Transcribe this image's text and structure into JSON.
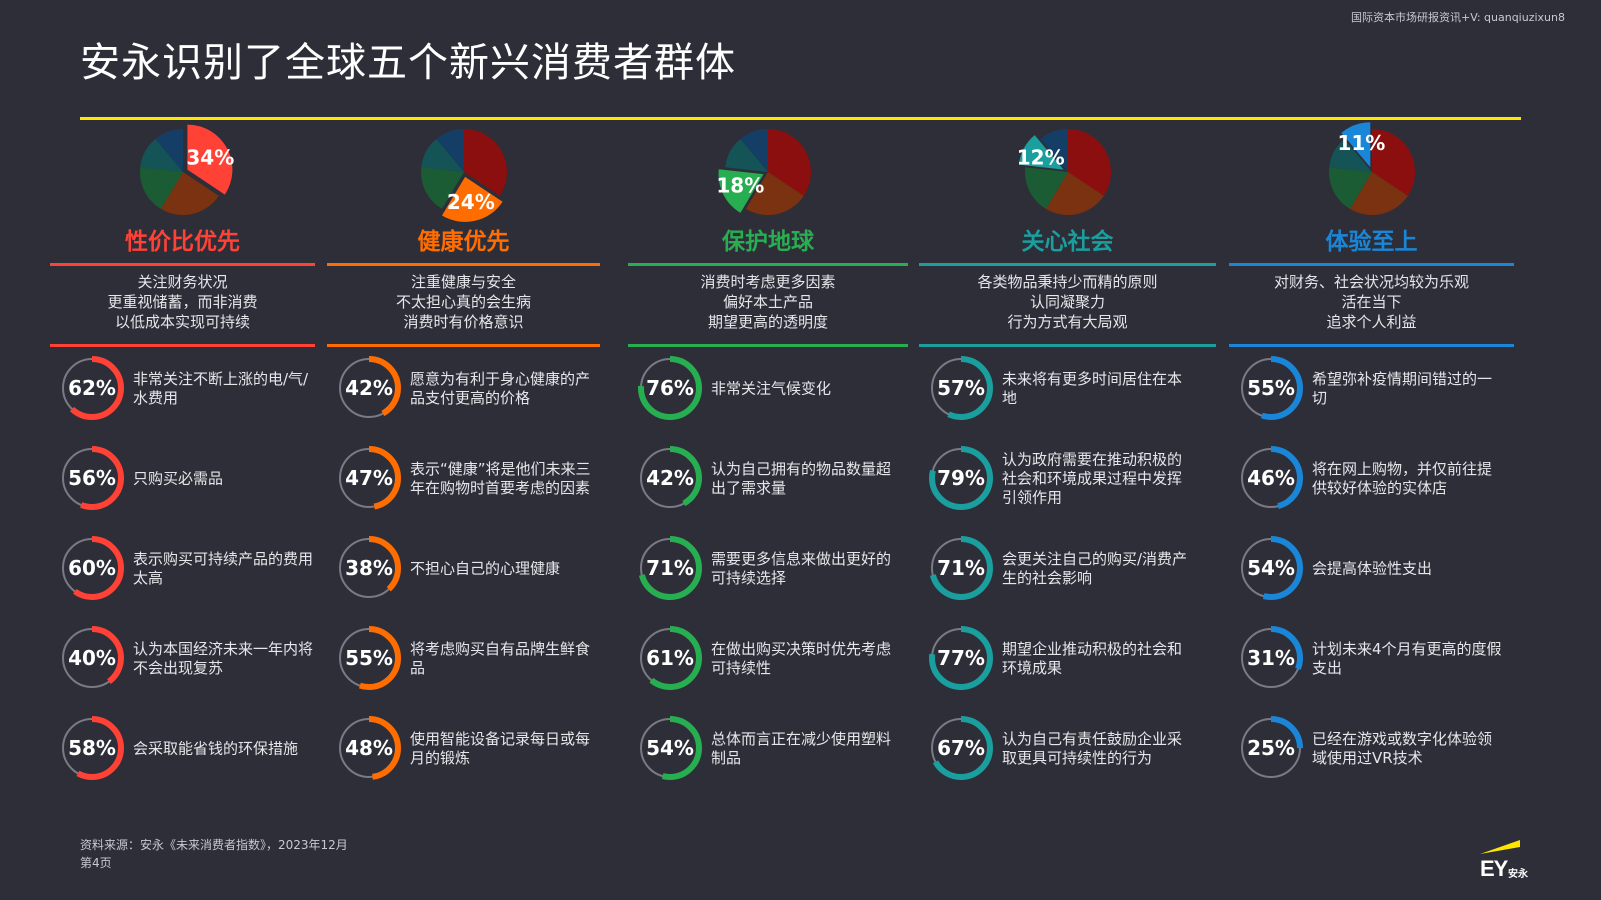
{
  "header": {
    "title": "安永识别了全球五个新兴消费者群体",
    "watermark": "国际资本市场研报资讯+V: quanqiuzixun8",
    "accent_line_color": "#ffe600"
  },
  "footer": {
    "source": "资料来源：安永《未来消费者指数》，2023年12月",
    "page": "第4页"
  },
  "logo": {
    "text": "EY",
    "cn": "安永"
  },
  "chart_data": {
    "type": "pie",
    "segment_colors": {
      "price_first": "#ff4136",
      "health_first": "#ff6d00",
      "protect_planet": "#27ae50",
      "care_society": "#1a9e9e",
      "experience_first": "#1a86d8"
    },
    "groups": [
      {
        "key": "price_first",
        "name": "性价比优先",
        "share": 34,
        "share_label": "34%",
        "color": "#ff4136",
        "description": [
          "关注财务状况",
          "更重视储蓄，而非消费",
          "以低成本实现可持续"
        ],
        "stats": [
          {
            "value": 62,
            "label": "62%",
            "text": "非常关注不断上涨的电/气/水费用"
          },
          {
            "value": 56,
            "label": "56%",
            "text": "只购买必需品"
          },
          {
            "value": 60,
            "label": "60%",
            "text": "表示购买可持续产品的费用太高"
          },
          {
            "value": 40,
            "label": "40%",
            "text": "认为本国经济未来一年内将不会出现复苏"
          },
          {
            "value": 58,
            "label": "58%",
            "text": "会采取能省钱的环保措施"
          }
        ]
      },
      {
        "key": "health_first",
        "name": "健康优先",
        "share": 24,
        "share_label": "24%",
        "color": "#ff6d00",
        "description": [
          "注重健康与安全",
          "不太担心真的会生病",
          "消费时有价格意识"
        ],
        "stats": [
          {
            "value": 42,
            "label": "42%",
            "text": "愿意为有利于身心健康的产品支付更高的价格"
          },
          {
            "value": 47,
            "label": "47%",
            "text": "表示“健康”将是他们未来三年在购物时首要考虑的因素"
          },
          {
            "value": 38,
            "label": "38%",
            "text": "不担心自己的心理健康"
          },
          {
            "value": 55,
            "label": "55%",
            "text": "将考虑购买自有品牌生鲜食品"
          },
          {
            "value": 48,
            "label": "48%",
            "text": "使用智能设备记录每日或每月的锻炼"
          }
        ]
      },
      {
        "key": "protect_planet",
        "name": "保护地球",
        "share": 18,
        "share_label": "18%",
        "color": "#27ae50",
        "description": [
          "消费时考虑更多因素",
          "偏好本土产品",
          "期望更高的透明度"
        ],
        "stats": [
          {
            "value": 76,
            "label": "76%",
            "text": "非常关注气候变化"
          },
          {
            "value": 42,
            "label": "42%",
            "text": "认为自己拥有的物品数量超出了需求量"
          },
          {
            "value": 71,
            "label": "71%",
            "text": "需要更多信息来做出更好的可持续选择"
          },
          {
            "value": 61,
            "label": "61%",
            "text": "在做出购买决策时优先考虑可持续性"
          },
          {
            "value": 54,
            "label": "54%",
            "text": "总体而言正在减少使用塑料制品"
          }
        ]
      },
      {
        "key": "care_society",
        "name": "关心社会",
        "share": 12,
        "share_label": "12%",
        "color": "#1a9e9e",
        "description": [
          "各类物品秉持少而精的原则",
          "认同凝聚力",
          "行为方式有大局观"
        ],
        "stats": [
          {
            "value": 57,
            "label": "57%",
            "text": "未来将有更多时间居住在本地"
          },
          {
            "value": 79,
            "label": "79%",
            "text": "认为政府需要在推动积极的社会和环境成果过程中发挥引领作用"
          },
          {
            "value": 71,
            "label": "71%",
            "text": "会更关注自己的购买/消费产生的社会影响"
          },
          {
            "value": 77,
            "label": "77%",
            "text": "期望企业推动积极的社会和环境成果"
          },
          {
            "value": 67,
            "label": "67%",
            "text": "认为自己有责任鼓励企业采取更具可持续性的行为"
          }
        ]
      },
      {
        "key": "experience_first",
        "name": "体验至上",
        "share": 11,
        "share_label": "11%",
        "color": "#1a86d8",
        "description": [
          "对财务、社会状况均较为乐观",
          "活在当下",
          "追求个人利益"
        ],
        "stats": [
          {
            "value": 55,
            "label": "55%",
            "text": "希望弥补疫情期间错过的一切"
          },
          {
            "value": 46,
            "label": "46%",
            "text": "将在网上购物，并仅前往提供较好体验的实体店"
          },
          {
            "value": 54,
            "label": "54%",
            "text": "会提高体验性支出"
          },
          {
            "value": 31,
            "label": "31%",
            "text": "计划未来4个月有更高的度假支出"
          },
          {
            "value": 25,
            "label": "25%",
            "text": "已经在游戏或数字化体验领域使用过VR技术"
          }
        ]
      }
    ]
  }
}
